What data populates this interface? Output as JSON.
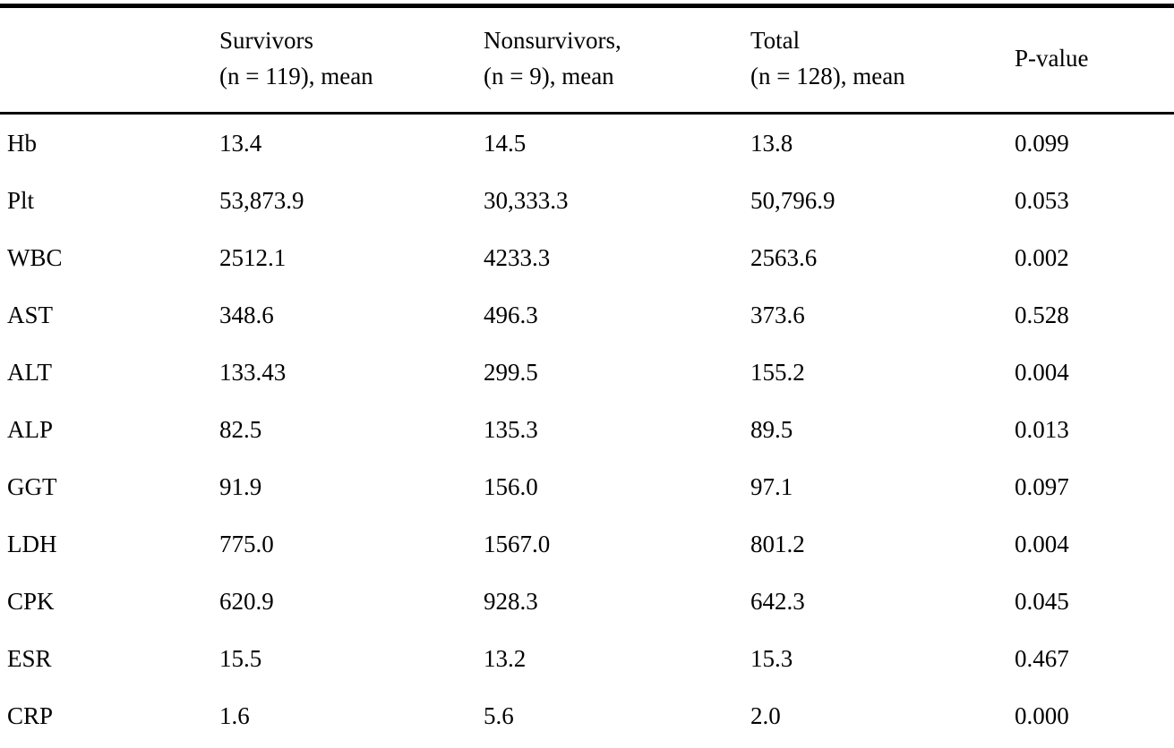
{
  "table": {
    "columns": [
      {
        "line1": "",
        "line2": ""
      },
      {
        "line1": "Survivors",
        "line2": "(n = 119), mean"
      },
      {
        "line1": "Nonsurvivors,",
        "line2": "(n = 9), mean"
      },
      {
        "line1": "Total",
        "line2": "(n = 128), mean"
      },
      {
        "line1": "P-value",
        "line2": ""
      }
    ],
    "rows": [
      {
        "label": "Hb",
        "survivors": "13.4",
        "nonsurvivors": "14.5",
        "total": "13.8",
        "p_value": "0.099"
      },
      {
        "label": "Plt",
        "survivors": "53,873.9",
        "nonsurvivors": "30,333.3",
        "total": "50,796.9",
        "p_value": "0.053"
      },
      {
        "label": "WBC",
        "survivors": "2512.1",
        "nonsurvivors": "4233.3",
        "total": "2563.6",
        "p_value": "0.002"
      },
      {
        "label": "AST",
        "survivors": "348.6",
        "nonsurvivors": "496.3",
        "total": "373.6",
        "p_value": "0.528"
      },
      {
        "label": "ALT",
        "survivors": "133.43",
        "nonsurvivors": "299.5",
        "total": "155.2",
        "p_value": "0.004"
      },
      {
        "label": "ALP",
        "survivors": "82.5",
        "nonsurvivors": "135.3",
        "total": "89.5",
        "p_value": "0.013"
      },
      {
        "label": "GGT",
        "survivors": "91.9",
        "nonsurvivors": "156.0",
        "total": "97.1",
        "p_value": "0.097"
      },
      {
        "label": "LDH",
        "survivors": "775.0",
        "nonsurvivors": "1567.0",
        "total": "801.2",
        "p_value": "0.004"
      },
      {
        "label": "CPK",
        "survivors": "620.9",
        "nonsurvivors": "928.3",
        "total": "642.3",
        "p_value": "0.045"
      },
      {
        "label": "ESR",
        "survivors": "15.5",
        "nonsurvivors": "13.2",
        "total": "15.3",
        "p_value": "0.467"
      },
      {
        "label": "CRP",
        "survivors": "1.6",
        "nonsurvivors": "5.6",
        "total": "2.0",
        "p_value": "0.000"
      }
    ],
    "colors": {
      "text": "#000000",
      "background": "#ffffff",
      "rule": "#000000"
    }
  },
  "chart_data": {
    "type": "table",
    "title": "",
    "columns": [
      "",
      "Survivors (n = 119), mean",
      "Nonsurvivors, (n = 9), mean",
      "Total (n = 128), mean",
      "P-value"
    ],
    "rows": [
      [
        "Hb",
        13.4,
        14.5,
        13.8,
        0.099
      ],
      [
        "Plt",
        53873.9,
        30333.3,
        50796.9,
        0.053
      ],
      [
        "WBC",
        2512.1,
        4233.3,
        2563.6,
        0.002
      ],
      [
        "AST",
        348.6,
        496.3,
        373.6,
        0.528
      ],
      [
        "ALT",
        133.43,
        299.5,
        155.2,
        0.004
      ],
      [
        "ALP",
        82.5,
        135.3,
        89.5,
        0.013
      ],
      [
        "GGT",
        91.9,
        156.0,
        97.1,
        0.097
      ],
      [
        "LDH",
        775.0,
        1567.0,
        801.2,
        0.004
      ],
      [
        "CPK",
        620.9,
        928.3,
        642.3,
        0.045
      ],
      [
        "ESR",
        15.5,
        13.2,
        15.3,
        0.467
      ],
      [
        "CRP",
        1.6,
        5.6,
        2.0,
        0.0
      ]
    ]
  }
}
